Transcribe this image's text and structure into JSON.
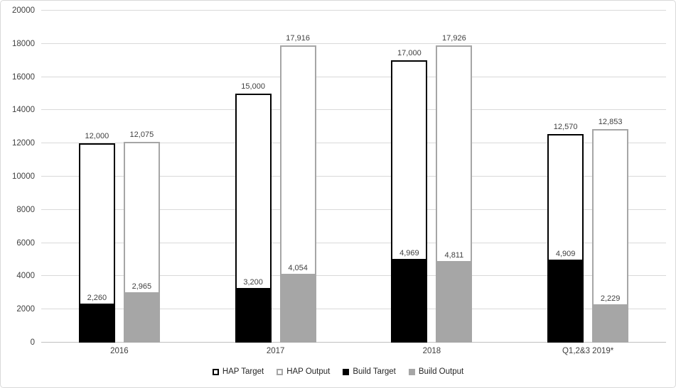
{
  "chart_data": {
    "type": "bar",
    "stacked": true,
    "title": "",
    "xlabel": "",
    "ylabel": "",
    "categories": [
      "2016",
      "2017",
      "2018",
      "Q1,2&3 2019*"
    ],
    "series": [
      {
        "name": "HAP Target",
        "values": [
          12000,
          15000,
          17000,
          12570
        ]
      },
      {
        "name": "HAP Output",
        "values": [
          12075,
          17916,
          17926,
          12853
        ]
      },
      {
        "name": "Build Target",
        "values": [
          2260,
          3200,
          4969,
          4909
        ]
      },
      {
        "name": "Build Output",
        "values": [
          2965,
          4054,
          4811,
          2229
        ]
      }
    ],
    "bar_composition": [
      {
        "total": "HAP Target",
        "inner": "Build Target"
      },
      {
        "total": "HAP Output",
        "inner": "Build Output"
      }
    ],
    "data_labels": {
      "totals": {
        "HAP Target": [
          "12,000",
          "15,000",
          "17,000",
          "12,570"
        ],
        "HAP Output": [
          "12,075",
          "17,916",
          "17,926",
          "12,853"
        ]
      },
      "inner": {
        "Build Target": [
          "2,260",
          "3,200",
          "4,969",
          "4,909"
        ],
        "Build Output": [
          "2,965",
          "4,054",
          "4,811",
          "2,229"
        ]
      }
    },
    "ylim": [
      0,
      20000
    ],
    "ytick_step": 2000,
    "yticks": [
      0,
      2000,
      4000,
      6000,
      8000,
      10000,
      12000,
      14000,
      16000,
      18000,
      20000
    ],
    "ytick_labels": [
      "0",
      "2000",
      "4000",
      "6000",
      "8000",
      "10000",
      "12000",
      "14000",
      "16000",
      "18000",
      "20000"
    ],
    "grid": true,
    "legend_position": "bottom",
    "legend": [
      "HAP Target",
      "HAP Output",
      "Build Target",
      "Build Output"
    ],
    "styles": {
      "HAP Target": {
        "fill": "#FFFFFF",
        "border": "#000000"
      },
      "HAP Output": {
        "fill": "#FFFFFF",
        "border": "#A6A6A6"
      },
      "Build Target": {
        "fill": "#000000",
        "border": "#000000"
      },
      "Build Output": {
        "fill": "#A6A6A6",
        "border": "#A6A6A6"
      }
    },
    "colors": {
      "gridline": "#D9D9D9",
      "axis_line": "#BFBFBF",
      "label_text": "#404040",
      "legend_text": "#262626",
      "frame_border": "#D9D9D9",
      "background": "#FFFFFF"
    }
  }
}
